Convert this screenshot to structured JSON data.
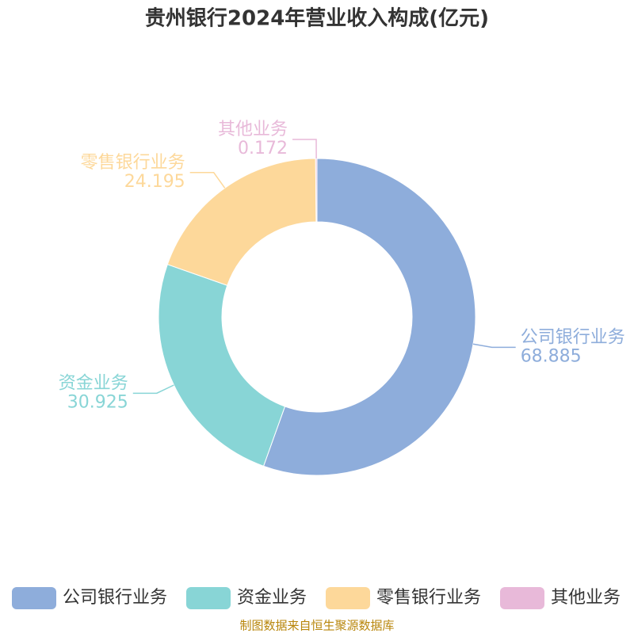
{
  "chart_data": {
    "type": "pie",
    "title": "贵州银行2024年营业收入构成(亿元)",
    "categories": [
      "公司银行业务",
      "资金业务",
      "零售银行业务",
      "其他业务"
    ],
    "values": [
      68.885,
      30.925,
      24.195,
      0.172
    ],
    "colors": [
      "#8eaddb",
      "#88d5d6",
      "#fdd89a",
      "#e8b9d9"
    ],
    "donut": true,
    "legend": "bottom",
    "source": "制图数据来自恒生聚源数据库"
  }
}
